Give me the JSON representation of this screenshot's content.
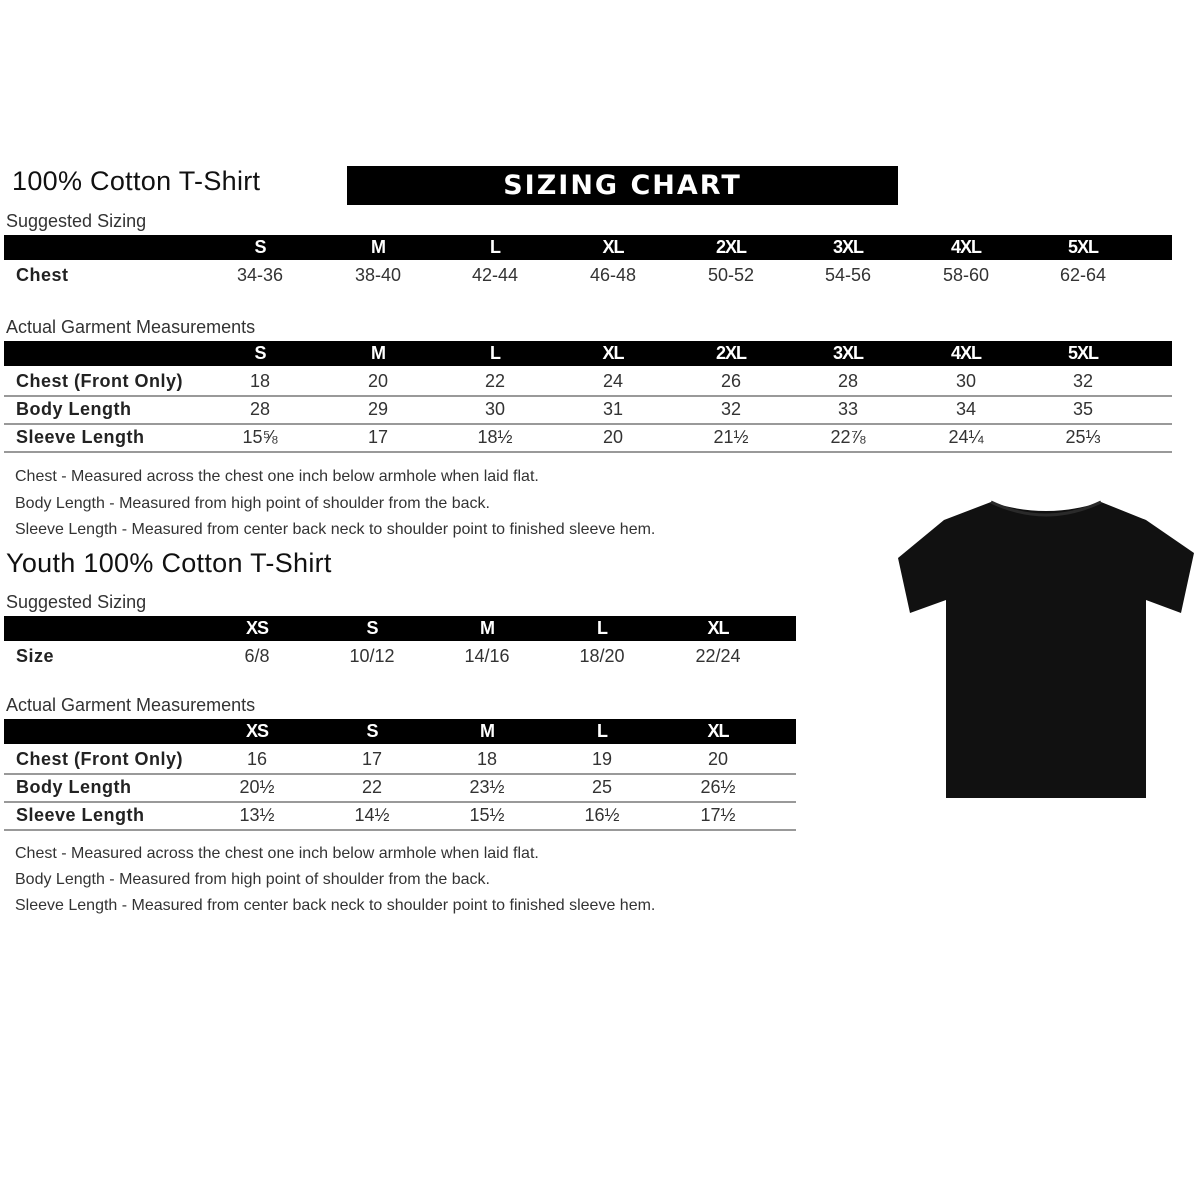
{
  "banner": "SIZING CHART",
  "adult": {
    "title": "100% Cotton T-Shirt",
    "suggested_label": "Suggested Sizing",
    "sizes": [
      "S",
      "M",
      "L",
      "XL",
      "2XL",
      "3XL",
      "4XL",
      "5XL"
    ],
    "suggested_rows": [
      {
        "label": "Chest",
        "values": [
          "34-36",
          "38-40",
          "42-44",
          "46-48",
          "50-52",
          "54-56",
          "58-60",
          "62-64"
        ]
      }
    ],
    "actual_label": "Actual Garment Measurements",
    "actual_rows": [
      {
        "label": "Chest (Front Only)",
        "values": [
          "18",
          "20",
          "22",
          "24",
          "26",
          "28",
          "30",
          "32"
        ]
      },
      {
        "label": "Body Length",
        "values": [
          "28",
          "29",
          "30",
          "31",
          "32",
          "33",
          "34",
          "35"
        ]
      },
      {
        "label": "Sleeve Length",
        "values": [
          "15⅝",
          "17",
          "18½",
          "20",
          "21½",
          "22⅞",
          "24¼",
          "25⅓"
        ]
      }
    ],
    "notes": [
      "Chest - Measured across the chest one inch below armhole when laid flat.",
      "Body Length - Measured from high point of shoulder from the back.",
      "Sleeve Length - Measured from center back neck to shoulder point to finished sleeve hem."
    ]
  },
  "youth": {
    "title": "Youth 100% Cotton T-Shirt",
    "suggested_label": "Suggested Sizing",
    "sizes": [
      "XS",
      "S",
      "M",
      "L",
      "XL"
    ],
    "suggested_rows": [
      {
        "label": "Size",
        "values": [
          "6/8",
          "10/12",
          "14/16",
          "18/20",
          "22/24"
        ]
      }
    ],
    "actual_label": "Actual Garment Measurements",
    "actual_rows": [
      {
        "label": "Chest (Front Only)",
        "values": [
          "16",
          "17",
          "18",
          "19",
          "20"
        ]
      },
      {
        "label": "Body Length",
        "values": [
          "20½",
          "22",
          "23½",
          "25",
          "26½"
        ]
      },
      {
        "label": "Sleeve Length",
        "values": [
          "13½",
          "14½",
          "15½",
          "16½",
          "17½"
        ]
      }
    ],
    "notes": [
      "Chest - Measured across the chest one inch below armhole when laid flat.",
      "Body Length - Measured from high point of shoulder from the back.",
      "Sleeve Length - Measured from center back neck to shoulder point to finished sleeve hem."
    ]
  },
  "image": {
    "icon": "tshirt-icon",
    "color": "#111111"
  }
}
